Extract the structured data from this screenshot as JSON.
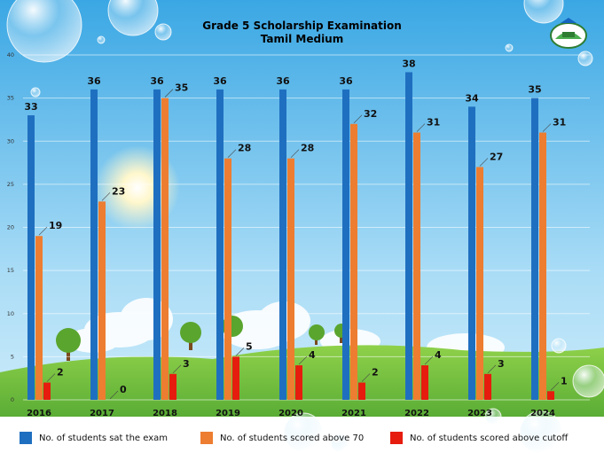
{
  "chart_data": {
    "type": "bar",
    "title": "Grade 5 Scholarship Examination",
    "subtitle": "Tamil Medium",
    "categories": [
      "2016",
      "2017",
      "2018",
      "2019",
      "2020",
      "2021",
      "2022",
      "2023",
      "2024"
    ],
    "series": [
      {
        "name": "No. of students sat the exam",
        "color": "#1f6fc0",
        "values": [
          33,
          36,
          36,
          36,
          36,
          36,
          38,
          34,
          35
        ]
      },
      {
        "name": "No. of students scored above 70",
        "color": "#ed7d31",
        "values": [
          19,
          23,
          35,
          28,
          28,
          32,
          31,
          27,
          31
        ]
      },
      {
        "name": "No. of students scored above cutoff",
        "color": "#e61c0e",
        "values": [
          2,
          0,
          3,
          5,
          4,
          2,
          4,
          3,
          1
        ]
      }
    ],
    "yticks": [
      0,
      5,
      10,
      15,
      20,
      25,
      30,
      35,
      40
    ],
    "ylim": [
      0,
      40
    ],
    "xlabel": "",
    "ylabel": "",
    "legend_position": "bottom",
    "grid": true
  },
  "colors": {
    "sky": "#4fb6ea",
    "grass": "#6fbf3a"
  }
}
